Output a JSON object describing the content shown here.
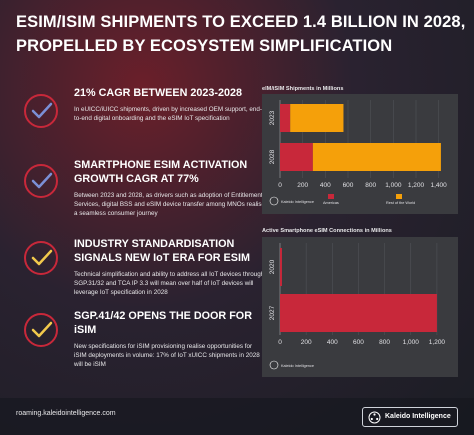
{
  "title": {
    "line1": "ESIM/ISIM SHIPMENTS TO EXCEED 1.4 BILLION IN 2028,",
    "line2": "PROPELLED BY ECOSYSTEM SIMPLIFICATION"
  },
  "items": [
    {
      "heading": "21% CAGR BETWEEN 2023-2028",
      "text": "In eUICC/iUICC shipments, driven by increased OEM support, end-to-end digital onboarding and the eSIM IoT specification",
      "check_color": "#7b8fd6"
    },
    {
      "heading": "SMARTPHONE ESIM ACTIVATION GROWTH CAGR AT 77%",
      "text": "Between 2023 and 2028, as drivers such as adoption of Entitlement Services, digital BSS and eSIM device transfer among MNOs realise a seamless consumer journey",
      "check_color": "#7b8fd6"
    },
    {
      "heading": "INDUSTRY STANDARDISATION SIGNALS NEW IoT ERA FOR ESIM",
      "text": "Technical simplification and ability to address all IoT devices through SGP.31/32 and TCA IP 3.3  will mean over half of IoT devices will leverage IoT specification in 2028",
      "check_color": "#f2c94c"
    },
    {
      "heading": "SGP.41/42 OPENS THE DOOR FOR iSIM",
      "text": "New specifications for iSIM provisioning realise opportunities for iSIM deployments in volume: 17% of IoT xUICC shipments in 2028 will be iSIM",
      "check_color": "#f2c94c"
    }
  ],
  "chart_data": [
    {
      "type": "bar",
      "orientation": "horizontal",
      "stacked": true,
      "title": "eIM/iSIM Shipments in Millions",
      "categories": [
        "2023",
        "2028"
      ],
      "series": [
        {
          "name": "Americas",
          "values": [
            90,
            290
          ],
          "color": "#c8283a"
        },
        {
          "name": "Rest of the World",
          "values": [
            470,
            1130
          ],
          "color": "#f5a00a"
        }
      ],
      "xlim": [
        0,
        1500
      ],
      "xticks": [
        "0",
        "200",
        "400",
        "600",
        "800",
        "1,000",
        "1,200",
        "1,400"
      ],
      "legend": "bottom",
      "source": "Kaleido Intelligence"
    },
    {
      "type": "bar",
      "orientation": "horizontal",
      "title": "Active Smartphone eSIM Connections in Millions",
      "categories": [
        "2020",
        "2027"
      ],
      "series": [
        {
          "name": "",
          "values": [
            15,
            1200
          ],
          "color": "#c8283a"
        }
      ],
      "xlim": [
        0,
        1300
      ],
      "xticks": [
        "0",
        "200",
        "400",
        "600",
        "800",
        "1,000",
        "1,200"
      ],
      "source": "Kaleido Intelligence"
    }
  ],
  "footer": {
    "url": "roaming.kaleidointelligence.com",
    "brand": "Kaleido Intelligence"
  }
}
